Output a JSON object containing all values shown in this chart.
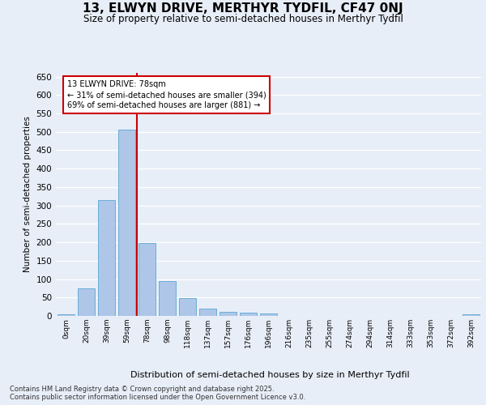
{
  "title": "13, ELWYN DRIVE, MERTHYR TYDFIL, CF47 0NJ",
  "subtitle": "Size of property relative to semi-detached houses in Merthyr Tydfil",
  "xlabel": "Distribution of semi-detached houses by size in Merthyr Tydfil",
  "ylabel": "Number of semi-detached properties",
  "bin_labels": [
    "0sqm",
    "20sqm",
    "39sqm",
    "59sqm",
    "78sqm",
    "98sqm",
    "118sqm",
    "137sqm",
    "157sqm",
    "176sqm",
    "196sqm",
    "216sqm",
    "235sqm",
    "255sqm",
    "274sqm",
    "294sqm",
    "314sqm",
    "333sqm",
    "353sqm",
    "372sqm",
    "392sqm"
  ],
  "bar_values": [
    5,
    75,
    315,
    505,
    198,
    95,
    48,
    20,
    10,
    8,
    7,
    0,
    0,
    0,
    0,
    0,
    0,
    0,
    0,
    0,
    5
  ],
  "bar_color": "#aec6e8",
  "bar_edgecolor": "#6baed6",
  "pct_smaller": 31,
  "count_smaller": 394,
  "pct_larger": 69,
  "count_larger": 881,
  "vline_color": "#cc0000",
  "annotation_box_edgecolor": "#cc0000",
  "bg_color": "#e8eef8",
  "plot_bg_color": "#e8eef8",
  "grid_color": "#ffffff",
  "footer_text": "Contains HM Land Registry data © Crown copyright and database right 2025.\nContains public sector information licensed under the Open Government Licence v3.0.",
  "ylim": [
    0,
    660
  ],
  "yticks": [
    0,
    50,
    100,
    150,
    200,
    250,
    300,
    350,
    400,
    450,
    500,
    550,
    600,
    650
  ]
}
